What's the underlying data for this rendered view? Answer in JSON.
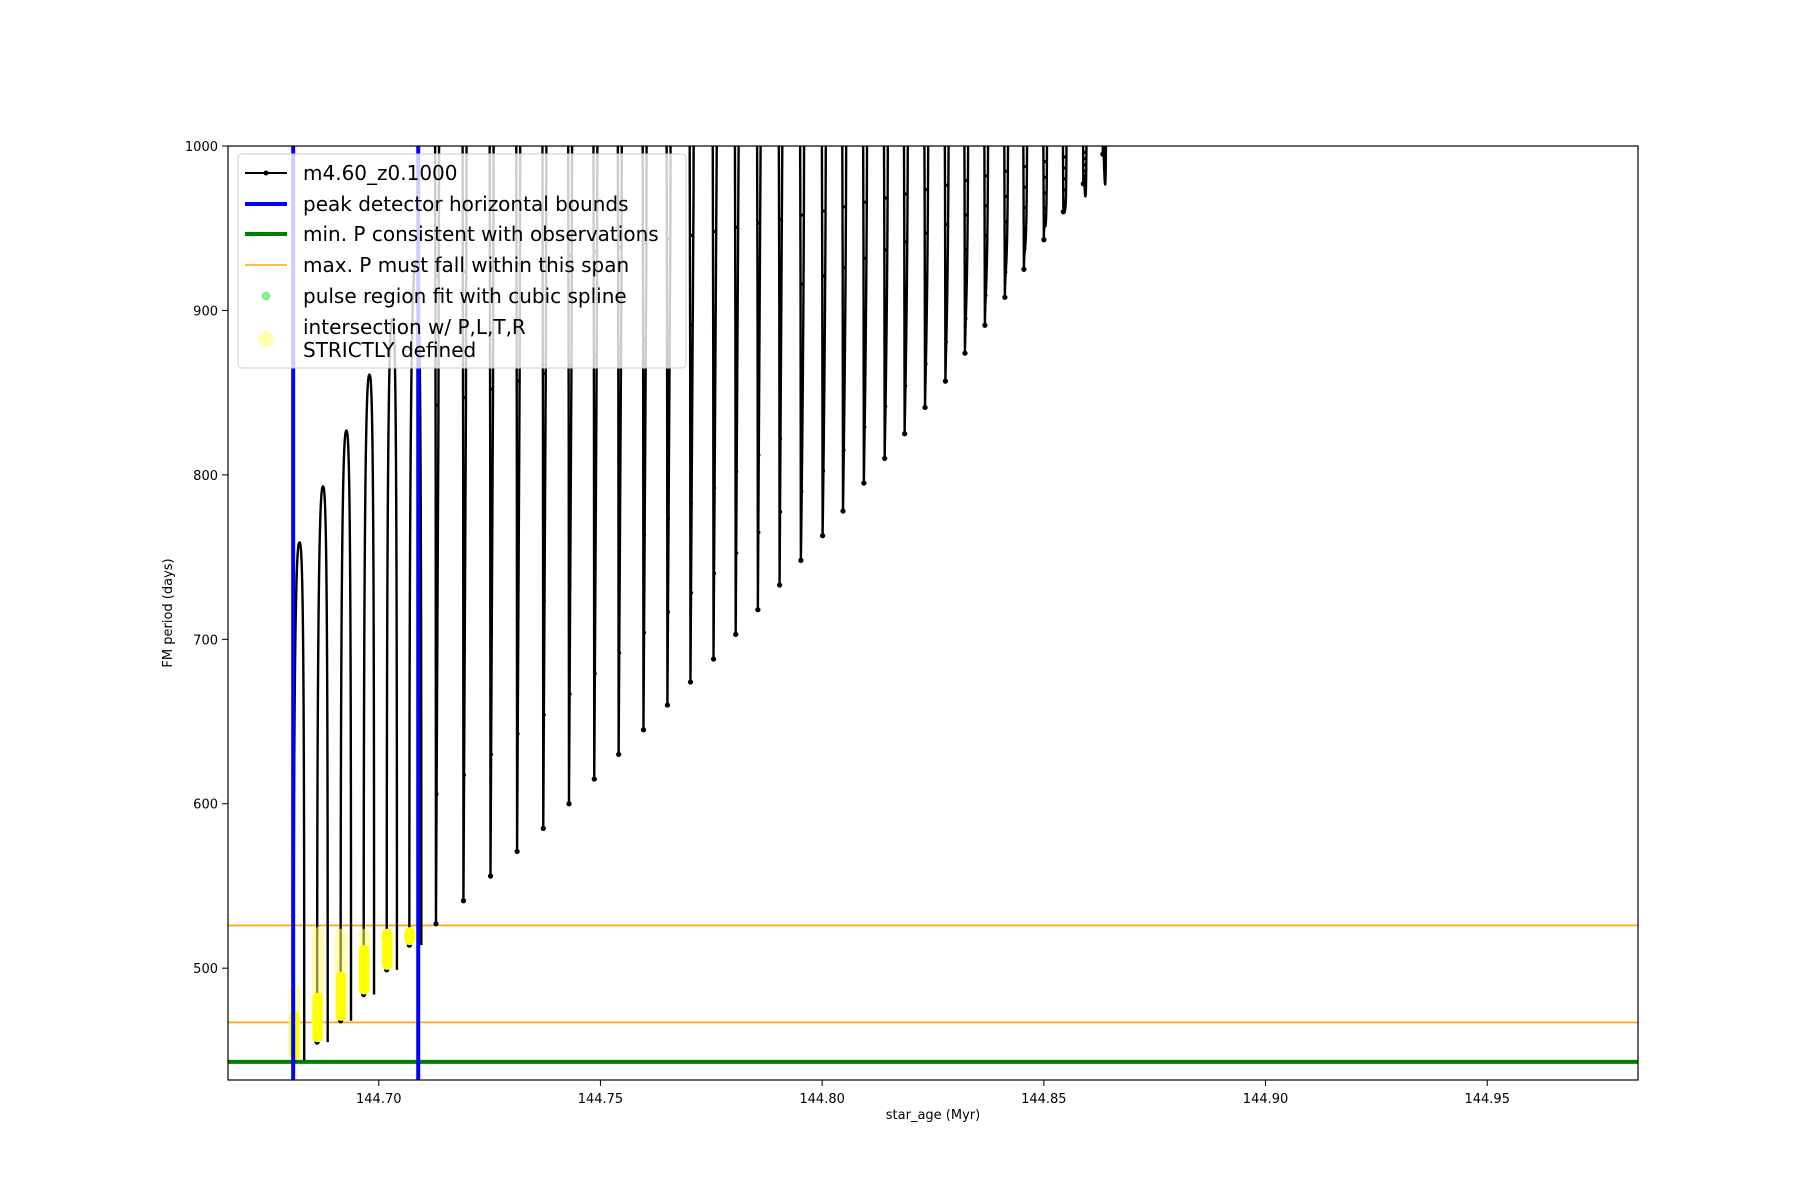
{
  "chart_data": {
    "type": "line",
    "xlabel": "star_age (Myr)",
    "ylabel": "FM period (days)",
    "xlim": [
      144.666,
      144.984
    ],
    "ylim": [
      432,
      1000
    ],
    "xticks": [
      144.7,
      144.75,
      144.8,
      144.85,
      144.9,
      144.95
    ],
    "xtick_labels": [
      "144.70",
      "144.75",
      "144.80",
      "144.85",
      "144.90",
      "144.95"
    ],
    "yticks": [
      500,
      600,
      700,
      800,
      900,
      1000
    ],
    "ytick_labels": [
      "500",
      "600",
      "700",
      "800",
      "900",
      "1000"
    ],
    "grid": false,
    "legend_position": "top-left",
    "legend": [
      {
        "label": "m4.60_z0.1000",
        "style": "line-marker",
        "color": "#000000"
      },
      {
        "label": "peak detector horizontal bounds",
        "style": "line",
        "color": "#0000ff"
      },
      {
        "label": "min. P consistent with observations",
        "style": "line",
        "color": "#008000"
      },
      {
        "label": "max. P must fall within this span",
        "style": "thin-line",
        "color": "#ffa500"
      },
      {
        "label": "pulse region fit with cubic spline",
        "style": "dot",
        "color": "#90ee90"
      },
      {
        "label": "intersection w/ P,L,T,R\nSTRICTLY defined",
        "style": "big-dot",
        "color": "#ffff99"
      }
    ],
    "vertical_lines": [
      {
        "name": "peak detector horizontal bounds",
        "x": 144.6807,
        "color": "#0000ff"
      },
      {
        "name": "peak detector horizontal bounds",
        "x": 144.7089,
        "color": "#0000ff"
      }
    ],
    "horizontal_lines": [
      {
        "name": "min. P consistent with observations",
        "y": 443,
        "color": "#008000"
      },
      {
        "name": "max. P must fall within this span",
        "y": 467,
        "color": "#ffa500"
      },
      {
        "name": "max. P must fall within this span",
        "y": 526,
        "color": "#ffa500"
      }
    ],
    "series": [
      {
        "name": "m4.60_z0.1000",
        "color": "#000000",
        "pulses": [
          [
            144.6808,
            759,
            444
          ],
          [
            144.6861,
            793,
            455
          ],
          [
            144.6914,
            827,
            468
          ],
          [
            144.6966,
            861,
            484
          ],
          [
            144.7018,
            895,
            499
          ],
          [
            144.7069,
            930,
            514
          ],
          [
            144.7129,
            1000,
            527
          ],
          [
            144.7191,
            1000,
            541
          ],
          [
            144.7252,
            1000,
            556
          ],
          [
            144.7312,
            1000,
            571
          ],
          [
            144.7371,
            1000,
            585
          ],
          [
            144.7429,
            1000,
            600
          ],
          [
            144.7486,
            1000,
            615
          ],
          [
            144.7541,
            1000,
            630
          ],
          [
            144.7597,
            1000,
            645
          ],
          [
            144.7651,
            1000,
            660
          ],
          [
            144.7703,
            1000,
            674
          ],
          [
            144.7755,
            1000,
            688
          ],
          [
            144.7805,
            1000,
            703
          ],
          [
            144.7855,
            1000,
            718
          ],
          [
            144.7904,
            1000,
            733
          ],
          [
            144.7952,
            1000,
            748
          ],
          [
            144.8001,
            1000,
            763
          ],
          [
            144.8047,
            1000,
            778
          ],
          [
            144.8094,
            1000,
            795
          ],
          [
            144.8141,
            1000,
            810
          ],
          [
            144.8186,
            1000,
            825
          ],
          [
            144.8232,
            1000,
            841
          ],
          [
            144.8278,
            1000,
            857
          ],
          [
            144.8322,
            1000,
            874
          ],
          [
            144.8367,
            1000,
            891
          ],
          [
            144.8412,
            1000,
            908
          ],
          [
            144.8455,
            1000,
            925
          ],
          [
            144.85,
            1000,
            943
          ],
          [
            144.8544,
            1000,
            960
          ],
          [
            144.8589,
            1000,
            977
          ],
          [
            144.8633,
            1000,
            995
          ]
        ]
      },
      {
        "name": "intersection w/ P,L,T,R STRICTLY defined",
        "color": "#ffff00",
        "regions": [
          [
            144.681,
            444,
            490
          ],
          [
            144.6862,
            455,
            525
          ],
          [
            144.6915,
            468,
            524
          ],
          [
            144.6967,
            484,
            524
          ],
          [
            144.7019,
            499,
            524
          ],
          [
            144.707,
            514,
            525
          ]
        ]
      }
    ]
  }
}
